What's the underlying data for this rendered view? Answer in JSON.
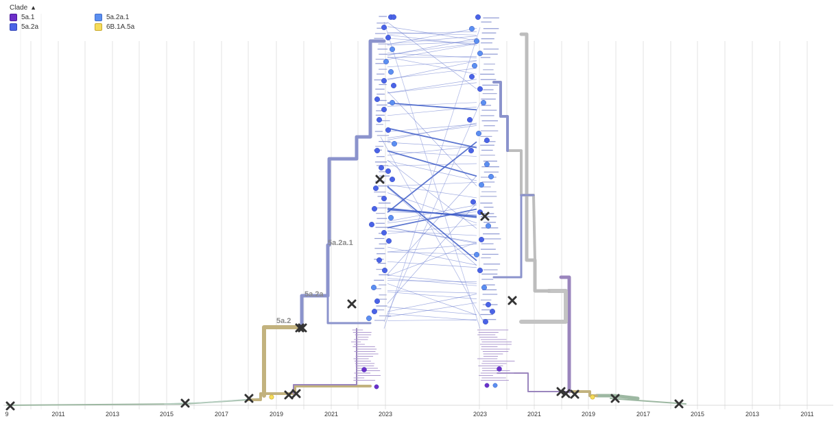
{
  "legend": {
    "title": "Clade",
    "toggle_icon": "chevron-up-icon",
    "items": [
      {
        "label": "5a.1",
        "color": "#6d2fc9",
        "border": "#4a1a99"
      },
      {
        "label": "5a.2a.1",
        "color": "#5b8ff0",
        "border": "#3f6ccc"
      },
      {
        "label": "5a.2a",
        "color": "#4a63e6",
        "border": "#3346b8"
      },
      {
        "label": "6B.1A.5a",
        "color": "#f6dc5a",
        "border": "#c8a92b"
      }
    ]
  },
  "colors": {
    "clade_5a2a": "#4a63e6",
    "clade_5a2a1": "#5b8ff0",
    "clade_5a1": "#6d2fc9",
    "clade_6b1a5a": "#f6dc5a",
    "branch_grey": "#bdbdbd",
    "branch_periwinkle": "#8b93cc",
    "branch_lavender": "#9a85bd",
    "branch_khaki": "#c2b27e",
    "branch_sage": "#9db8a2",
    "tangle_line": "#5066c8",
    "marker_x": "#333333",
    "grid": "#e3e3e3"
  },
  "chart_data": {
    "type": "tanglegram",
    "x_left": {
      "tick_labels": [
        "2011",
        "2013",
        "2015",
        "2017",
        "2019",
        "2021",
        "2023"
      ],
      "truncated_first_tick": "9"
    },
    "x_right": {
      "tick_labels": [
        "2023",
        "2021",
        "2019",
        "2017",
        "2015",
        "2013",
        "2011"
      ]
    },
    "branch_labels": [
      "5a.2a.1",
      "5a.2a",
      "5a.2"
    ],
    "grid": true,
    "legend_placement": "top-left"
  }
}
